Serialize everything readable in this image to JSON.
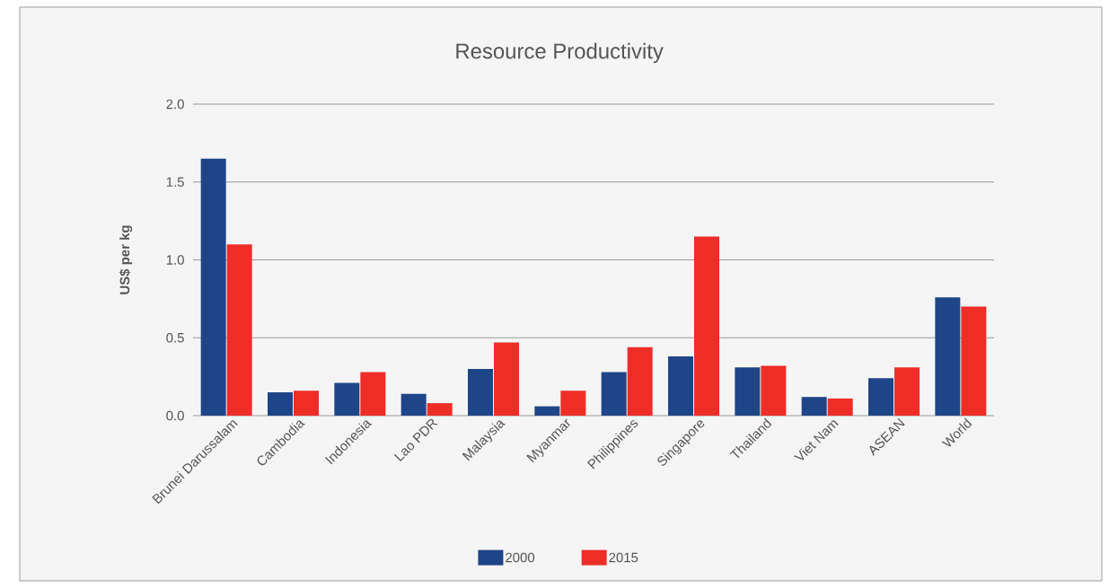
{
  "chart_data": {
    "type": "bar",
    "title": "Resource Productivity",
    "ylabel": "US$ per kg",
    "categories": [
      "Brunei Darussalam",
      "Cambodia",
      "Indonesia",
      "Lao PDR",
      "Malaysia",
      "Myanmar",
      "Philippines",
      "Singapore",
      "Thailand",
      "Viet Nam",
      "ASEAN",
      "World"
    ],
    "series": [
      {
        "name": "2000",
        "color": "#1f4589",
        "values": [
          1.65,
          0.15,
          0.21,
          0.14,
          0.3,
          0.06,
          0.28,
          0.38,
          0.31,
          0.12,
          0.24,
          0.76
        ]
      },
      {
        "name": "2015",
        "color": "#ee2d29",
        "values": [
          1.1,
          0.16,
          0.28,
          0.08,
          0.47,
          0.16,
          0.44,
          1.15,
          0.32,
          0.11,
          0.31,
          0.7
        ]
      }
    ],
    "ylim": [
      0,
      2
    ],
    "yticks": [
      {
        "value": 0,
        "label": "0.0"
      },
      0.5,
      {
        "value": 1,
        "label": "1.0"
      },
      1.5,
      {
        "value": 2,
        "label": "2.0"
      }
    ],
    "grid": "y",
    "legend": "bottom"
  }
}
